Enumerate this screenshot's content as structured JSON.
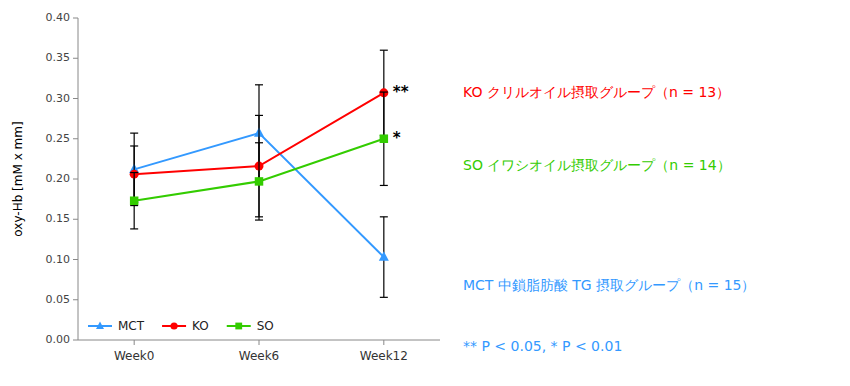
{
  "chart_data": {
    "type": "line",
    "categories": [
      "Week0",
      "Week6",
      "Week12"
    ],
    "ylabel": "oxy-Hb [mM x mm]",
    "ylim": [
      0.0,
      0.4
    ],
    "yticks": [
      {
        "value": 0.0,
        "label": "0.00"
      },
      0.05,
      {
        "value": 0.1,
        "label": "0.10"
      },
      0.15,
      {
        "value": 0.2,
        "label": "0.20"
      },
      0.25,
      {
        "value": 0.3,
        "label": "0.30"
      },
      0.35,
      {
        "value": 0.4,
        "label": "0.40"
      }
    ],
    "grid": false,
    "legend": "lower left",
    "series": [
      {
        "name": "MCT",
        "color": "#3399FF",
        "marker": "triangle",
        "values": [
          0.212,
          0.257,
          0.103
        ],
        "errors": [
          0.045,
          0.06,
          0.05
        ]
      },
      {
        "name": "KO",
        "color": "#FF0000",
        "marker": "circle",
        "values": [
          0.206,
          0.216,
          0.307
        ],
        "errors": [
          0.035,
          0.063,
          0.053
        ],
        "significance": [
          null,
          null,
          "**"
        ]
      },
      {
        "name": "SO",
        "color": "#33CC00",
        "marker": "square",
        "values": [
          0.173,
          0.197,
          0.25
        ],
        "errors": [
          0.035,
          0.048,
          0.058
        ],
        "significance": [
          null,
          null,
          "*"
        ]
      }
    ],
    "notes": [
      {
        "text": "KO クリルオイル摂取グループ（n = 13）",
        "color": "#FF0000"
      },
      {
        "text": "SO イワシオイル摂取グループ（n = 14）",
        "color": "#33CC00"
      },
      {
        "text": "MCT 中鎖脂肪酸 TG 摂取グループ（n = 15）",
        "color": "#3399FF"
      },
      {
        "text": "** P < 0.05, * P < 0.01",
        "color": "#3399FF"
      }
    ]
  }
}
